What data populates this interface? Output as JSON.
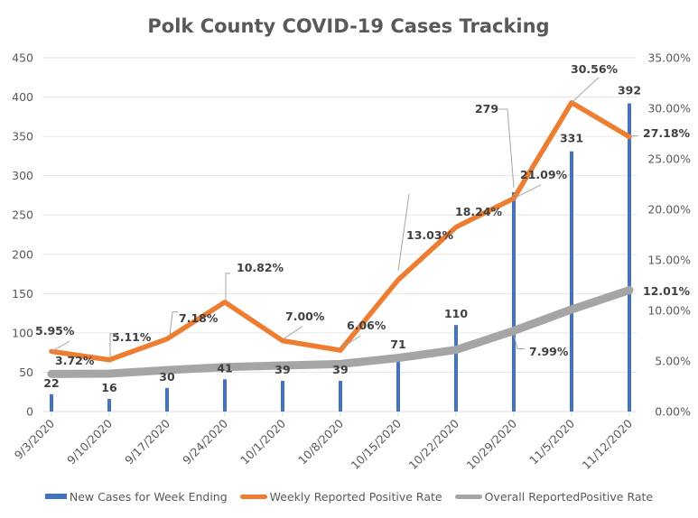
{
  "chart_data": {
    "type": "bar+line",
    "title": "Polk County COVID-19 Cases Tracking",
    "categories": [
      "9/3/2020",
      "9/10/2020",
      "9/17/2020",
      "9/24/2020",
      "10/1/2020",
      "10/8/2020",
      "10/15/2020",
      "10/22/2020",
      "10/29/2020",
      "11/5/2020",
      "11/12/2020"
    ],
    "series": [
      {
        "name": "New Cases for Week Ending",
        "type": "bar",
        "axis": "left",
        "color": "#4472C4",
        "values": [
          22,
          16,
          30,
          41,
          39,
          39,
          71,
          110,
          279,
          331,
          392
        ],
        "labels": [
          "22",
          "16",
          "30",
          "41",
          "39",
          "39",
          "71",
          "110",
          "279",
          "331",
          "392"
        ]
      },
      {
        "name": "Weekly Reported Positive Rate",
        "type": "line",
        "axis": "right",
        "color": "#ED7D31",
        "values": [
          5.95,
          5.11,
          7.18,
          10.82,
          7.0,
          6.06,
          13.03,
          18.24,
          21.09,
          30.56,
          27.18
        ],
        "labels": [
          "5.95%",
          "5.11%",
          "7.18%",
          "10.82%",
          "7.00%",
          "6.06%",
          "13.03%",
          "18.24%",
          "21.09%",
          "30.56%",
          "27.18%"
        ]
      },
      {
        "name": "Overall ReportedPositive Rate",
        "type": "line",
        "axis": "right",
        "color": "#A5A5A5",
        "values": [
          3.72,
          3.75,
          4.1,
          4.4,
          4.55,
          4.7,
          5.3,
          6.1,
          7.99,
          10.1,
          12.01
        ],
        "labels": [
          "3.72%",
          "",
          "",
          "",
          "",
          "",
          "",
          "",
          "7.99%",
          "",
          "12.01%"
        ]
      }
    ],
    "left_axis": {
      "min": 0,
      "max": 450,
      "step": 50,
      "ticks": [
        "0",
        "50",
        "100",
        "150",
        "200",
        "250",
        "300",
        "350",
        "400",
        "450"
      ]
    },
    "right_axis": {
      "min": 0,
      "max": 35,
      "step": 5,
      "ticks": [
        "0.00%",
        "5.00%",
        "10.00%",
        "15.00%",
        "20.00%",
        "25.00%",
        "30.00%",
        "35.00%"
      ]
    },
    "xlabel": "",
    "ylabel": "",
    "grid": true,
    "legend": "bottom"
  }
}
